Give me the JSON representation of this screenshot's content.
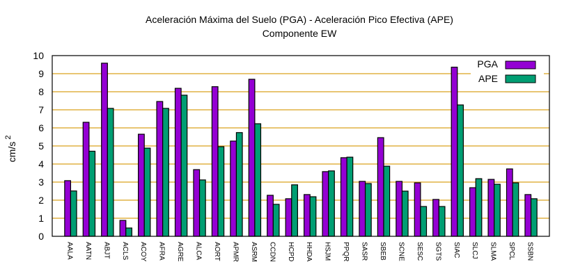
{
  "chart_data": {
    "type": "bar",
    "title": "Aceleración Máxima del Suelo (PGA) -  Aceleración Pico Efectiva (APE)",
    "subtitle": "Componente EW",
    "xlabel": "",
    "ylabel": "cm/s",
    "ylabel_superscript": "2",
    "ylim": [
      0,
      10
    ],
    "yticks": [
      "0",
      "1",
      "2",
      "3",
      "4",
      "5",
      "6",
      "7",
      "8",
      "9",
      "10"
    ],
    "grid": true,
    "legend_position": "top-right",
    "categories": [
      "AALA",
      "AATN",
      "ABJT",
      "ACLS",
      "ACOY",
      "AFRA",
      "AGRE",
      "ALCA",
      "AORT",
      "APMR",
      "ASRM",
      "CCDN",
      "HCPD",
      "HHDA",
      "HSJM",
      "PPQR",
      "SASR",
      "SBEB",
      "SCNE",
      "SESC",
      "SGTS",
      "SIAC",
      "SLCJ",
      "SLMA",
      "SPCL",
      "SSBN"
    ],
    "series": [
      {
        "name": "PGA",
        "color": "#9400d3",
        "values": [
          3.08,
          6.31,
          9.58,
          0.88,
          5.65,
          7.46,
          8.19,
          3.69,
          8.28,
          5.27,
          8.69,
          2.27,
          2.08,
          2.31,
          3.58,
          4.35,
          3.04,
          5.46,
          3.04,
          2.96,
          2.04,
          9.36,
          2.69,
          3.15,
          3.73,
          2.31
        ]
      },
      {
        "name": "APE",
        "color": "#009e73",
        "values": [
          2.51,
          4.71,
          7.08,
          0.46,
          4.88,
          7.08,
          7.81,
          3.12,
          4.96,
          5.74,
          6.23,
          1.77,
          2.85,
          2.19,
          3.62,
          4.38,
          2.92,
          3.88,
          2.5,
          1.65,
          1.65,
          7.27,
          3.19,
          2.88,
          2.96,
          2.08
        ]
      }
    ],
    "grid_color": "#dba21e"
  }
}
